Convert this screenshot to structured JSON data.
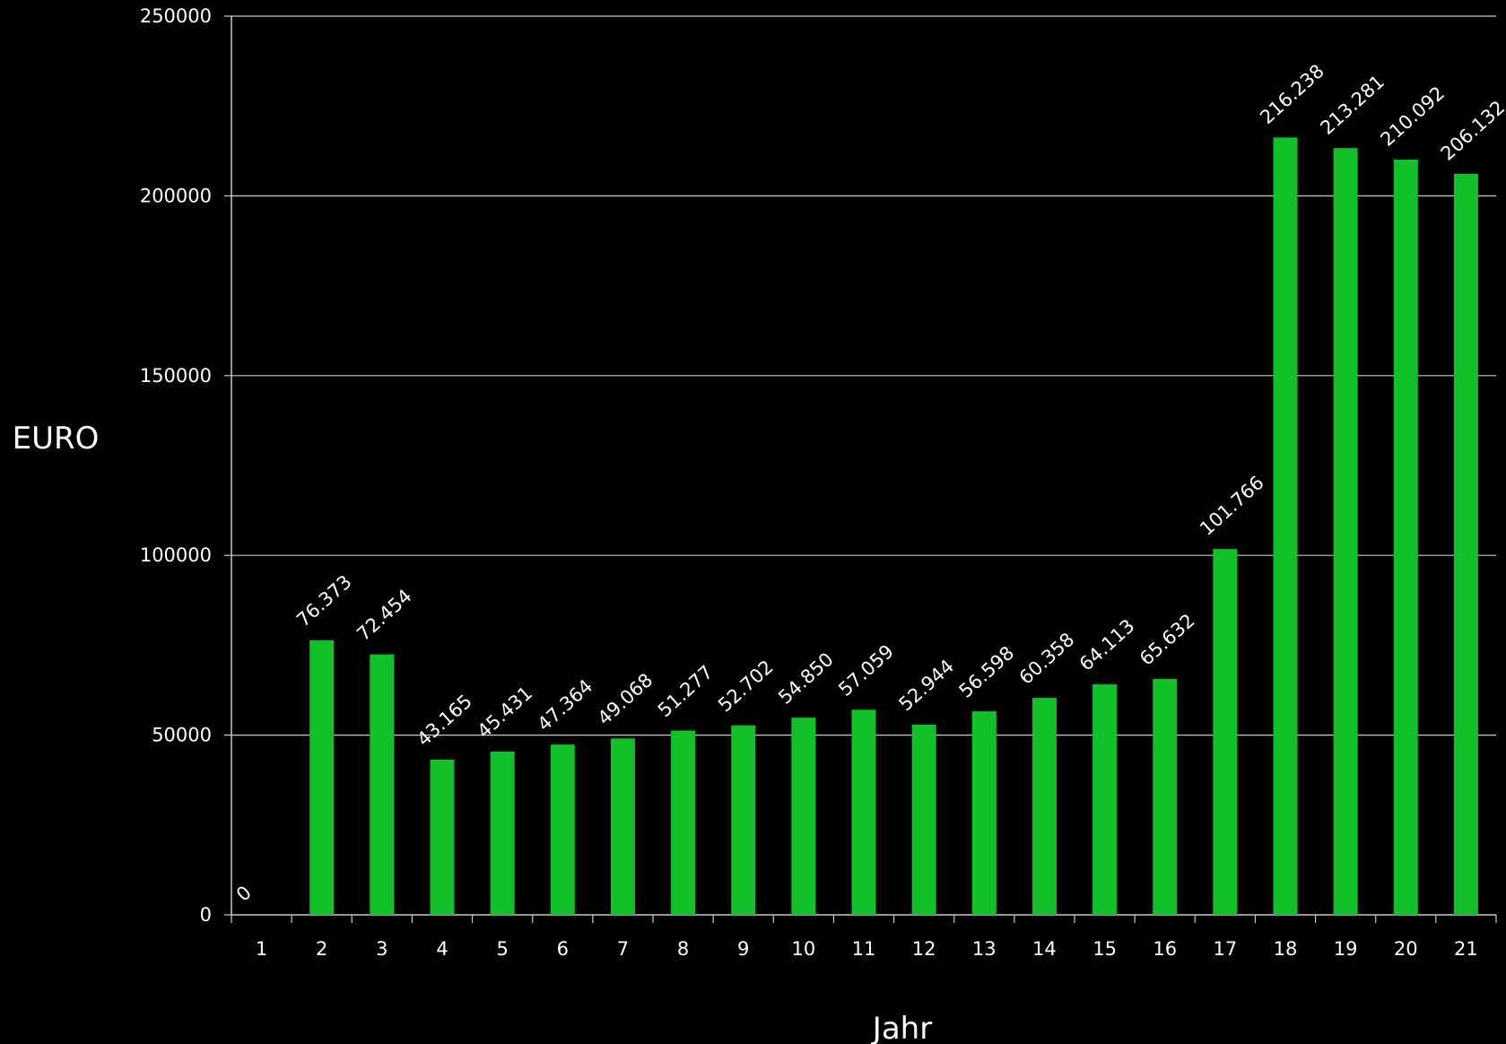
{
  "chart_data": {
    "type": "bar",
    "xlabel": "Jahr",
    "ylabel": "EURO",
    "ylim": [
      0,
      250000
    ],
    "yticks": [
      0,
      50000,
      100000,
      150000,
      200000,
      250000
    ],
    "ytick_labels": [
      "0",
      "50000",
      "100000",
      "150000",
      "200000",
      "250000"
    ],
    "grid": "horizontal",
    "categories": [
      "1",
      "2",
      "3",
      "4",
      "5",
      "6",
      "7",
      "8",
      "9",
      "10",
      "11",
      "12",
      "13",
      "14",
      "15",
      "16",
      "17",
      "18",
      "19",
      "20",
      "21"
    ],
    "values": [
      0,
      76373,
      72454,
      43165,
      45431,
      47364,
      49068,
      51277,
      52702,
      54850,
      57059,
      52944,
      56598,
      60358,
      64113,
      65632,
      101766,
      216238,
      213281,
      210092,
      206132
    ],
    "data_labels": [
      "0",
      "76.373",
      "72.454",
      "43.165",
      "45.431",
      "47.364",
      "49.068",
      "51.277",
      "52.702",
      "54.850",
      "57.059",
      "52.944",
      "56.598",
      "60.358",
      "64.113",
      "65.632",
      "101.766",
      "216.238",
      "213.281",
      "210.092",
      "206.132"
    ],
    "bar_color": "#12c12a",
    "background": "#000000",
    "text_color": "#ffffff"
  }
}
